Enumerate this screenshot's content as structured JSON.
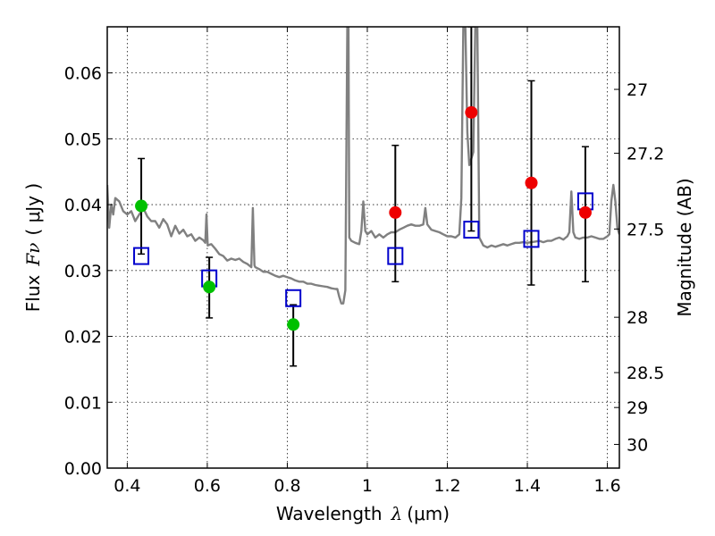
{
  "chart_data": {
    "type": "scatter",
    "xlabel": {
      "text": "Wavelength",
      "symbol": "λ",
      "unit": "(μm)"
    },
    "ylabel": {
      "text": "Flux",
      "symbol": "Fν",
      "unit": "( μJy )"
    },
    "y2label": "Magnitude (AB)",
    "xlim": [
      0.35,
      1.63
    ],
    "ylim": [
      0.0,
      0.067
    ],
    "x_ticks": [
      0.4,
      0.6,
      0.8,
      1.0,
      1.2,
      1.4,
      1.6
    ],
    "x_tick_labels": [
      "0.4",
      "0.6",
      "0.8",
      "1",
      "1.2",
      "1.4",
      "1.6"
    ],
    "y_ticks": [
      0.0,
      0.01,
      0.02,
      0.03,
      0.04,
      0.05,
      0.06
    ],
    "y_tick_labels": [
      "0.00",
      "0.01",
      "0.02",
      "0.03",
      "0.04",
      "0.05",
      "0.06"
    ],
    "y2_ticks": [
      {
        "label": "27",
        "flux": 0.0575
      },
      {
        "label": "27.2",
        "flux": 0.0478
      },
      {
        "label": "27.5",
        "flux": 0.0363
      },
      {
        "label": "28",
        "flux": 0.0229
      },
      {
        "label": "28.5",
        "flux": 0.0145
      },
      {
        "label": "29",
        "flux": 0.0092
      },
      {
        "label": "30",
        "flux": 0.0036
      }
    ],
    "grid": true,
    "colors": {
      "model": "#808080",
      "green": "#00c000",
      "red": "#ee0000",
      "box": "#0000cc",
      "errorbar": "#000000"
    },
    "series": [
      {
        "kind": "line",
        "points": [
          [
            0.35,
            0.043
          ],
          [
            0.355,
            0.0365
          ],
          [
            0.36,
            0.04
          ],
          [
            0.365,
            0.0385
          ],
          [
            0.37,
            0.041
          ],
          [
            0.38,
            0.0405
          ],
          [
            0.39,
            0.039
          ],
          [
            0.4,
            0.0385
          ],
          [
            0.41,
            0.039
          ],
          [
            0.42,
            0.0375
          ],
          [
            0.43,
            0.0385
          ],
          [
            0.44,
            0.0395
          ],
          [
            0.45,
            0.0382
          ],
          [
            0.46,
            0.0375
          ],
          [
            0.47,
            0.0375
          ],
          [
            0.48,
            0.0365
          ],
          [
            0.49,
            0.0378
          ],
          [
            0.5,
            0.037
          ],
          [
            0.51,
            0.0352
          ],
          [
            0.52,
            0.0368
          ],
          [
            0.53,
            0.0356
          ],
          [
            0.54,
            0.0362
          ],
          [
            0.55,
            0.0352
          ],
          [
            0.56,
            0.0355
          ],
          [
            0.57,
            0.0345
          ],
          [
            0.58,
            0.035
          ],
          [
            0.59,
            0.0346
          ],
          [
            0.595,
            0.0342
          ],
          [
            0.598,
            0.0385
          ],
          [
            0.601,
            0.0338
          ],
          [
            0.61,
            0.034
          ],
          [
            0.62,
            0.0333
          ],
          [
            0.63,
            0.0325
          ],
          [
            0.64,
            0.0322
          ],
          [
            0.65,
            0.0315
          ],
          [
            0.66,
            0.0318
          ],
          [
            0.67,
            0.0316
          ],
          [
            0.68,
            0.0318
          ],
          [
            0.69,
            0.0313
          ],
          [
            0.7,
            0.031
          ],
          [
            0.71,
            0.0305
          ],
          [
            0.714,
            0.0395
          ],
          [
            0.718,
            0.0308
          ],
          [
            0.72,
            0.0305
          ],
          [
            0.73,
            0.0302
          ],
          [
            0.74,
            0.0298
          ],
          [
            0.75,
            0.0298
          ],
          [
            0.76,
            0.0295
          ],
          [
            0.77,
            0.0292
          ],
          [
            0.78,
            0.029
          ],
          [
            0.79,
            0.0292
          ],
          [
            0.8,
            0.029
          ],
          [
            0.81,
            0.0288
          ],
          [
            0.82,
            0.0285
          ],
          [
            0.83,
            0.0283
          ],
          [
            0.84,
            0.0283
          ],
          [
            0.85,
            0.028
          ],
          [
            0.86,
            0.028
          ],
          [
            0.87,
            0.0278
          ],
          [
            0.88,
            0.0277
          ],
          [
            0.89,
            0.0276
          ],
          [
            0.9,
            0.0275
          ],
          [
            0.91,
            0.0273
          ],
          [
            0.92,
            0.0272
          ],
          [
            0.925,
            0.0272
          ],
          [
            0.93,
            0.026
          ],
          [
            0.935,
            0.025
          ],
          [
            0.94,
            0.025
          ],
          [
            0.945,
            0.027
          ],
          [
            0.95,
            0.067
          ],
          [
            0.953,
            0.067
          ],
          [
            0.955,
            0.035
          ],
          [
            0.96,
            0.0345
          ],
          [
            0.97,
            0.0342
          ],
          [
            0.98,
            0.034
          ],
          [
            0.985,
            0.036
          ],
          [
            0.99,
            0.0405
          ],
          [
            0.995,
            0.036
          ],
          [
            1.0,
            0.0355
          ],
          [
            1.01,
            0.036
          ],
          [
            1.02,
            0.035
          ],
          [
            1.03,
            0.0355
          ],
          [
            1.04,
            0.035
          ],
          [
            1.05,
            0.0355
          ],
          [
            1.06,
            0.0358
          ],
          [
            1.07,
            0.0358
          ],
          [
            1.08,
            0.0362
          ],
          [
            1.09,
            0.0365
          ],
          [
            1.1,
            0.0368
          ],
          [
            1.11,
            0.037
          ],
          [
            1.12,
            0.0368
          ],
          [
            1.13,
            0.0368
          ],
          [
            1.14,
            0.037
          ],
          [
            1.145,
            0.0395
          ],
          [
            1.15,
            0.037
          ],
          [
            1.16,
            0.0362
          ],
          [
            1.17,
            0.036
          ],
          [
            1.18,
            0.0358
          ],
          [
            1.19,
            0.0355
          ],
          [
            1.2,
            0.0352
          ],
          [
            1.21,
            0.0352
          ],
          [
            1.22,
            0.035
          ],
          [
            1.23,
            0.0355
          ],
          [
            1.235,
            0.041
          ],
          [
            1.24,
            0.067
          ],
          [
            1.245,
            0.067
          ],
          [
            1.25,
            0.051
          ],
          [
            1.255,
            0.046
          ],
          [
            1.26,
            0.047
          ],
          [
            1.265,
            0.048
          ],
          [
            1.27,
            0.067
          ],
          [
            1.275,
            0.067
          ],
          [
            1.28,
            0.035
          ],
          [
            1.29,
            0.0338
          ],
          [
            1.3,
            0.0335
          ],
          [
            1.31,
            0.0338
          ],
          [
            1.32,
            0.0336
          ],
          [
            1.33,
            0.0338
          ],
          [
            1.34,
            0.034
          ],
          [
            1.35,
            0.0338
          ],
          [
            1.36,
            0.034
          ],
          [
            1.37,
            0.0342
          ],
          [
            1.38,
            0.0342
          ],
          [
            1.39,
            0.0343
          ],
          [
            1.4,
            0.0342
          ],
          [
            1.41,
            0.0343
          ],
          [
            1.42,
            0.0344
          ],
          [
            1.43,
            0.0345
          ],
          [
            1.44,
            0.0343
          ],
          [
            1.45,
            0.0345
          ],
          [
            1.46,
            0.0345
          ],
          [
            1.47,
            0.0348
          ],
          [
            1.48,
            0.035
          ],
          [
            1.49,
            0.0347
          ],
          [
            1.5,
            0.0352
          ],
          [
            1.505,
            0.0358
          ],
          [
            1.51,
            0.042
          ],
          [
            1.515,
            0.0358
          ],
          [
            1.52,
            0.035
          ],
          [
            1.53,
            0.0348
          ],
          [
            1.54,
            0.035
          ],
          [
            1.55,
            0.035
          ],
          [
            1.56,
            0.0352
          ],
          [
            1.57,
            0.035
          ],
          [
            1.58,
            0.0348
          ],
          [
            1.59,
            0.0348
          ],
          [
            1.6,
            0.0352
          ],
          [
            1.605,
            0.0355
          ],
          [
            1.61,
            0.0405
          ],
          [
            1.615,
            0.043
          ],
          [
            1.62,
            0.0405
          ],
          [
            1.625,
            0.0365
          ],
          [
            1.63,
            0.0355
          ]
        ]
      },
      {
        "kind": "errorbar-points",
        "color": "green",
        "points": [
          {
            "x": 0.435,
            "y": 0.0398,
            "lo": 0.0325,
            "hi": 0.047
          },
          {
            "x": 0.605,
            "y": 0.0275,
            "lo": 0.0228,
            "hi": 0.032
          },
          {
            "x": 0.815,
            "y": 0.0218,
            "lo": 0.0155,
            "hi": 0.0248
          }
        ]
      },
      {
        "kind": "errorbar-points",
        "color": "red",
        "points": [
          {
            "x": 1.07,
            "y": 0.0388,
            "lo": 0.0283,
            "hi": 0.049
          },
          {
            "x": 1.26,
            "y": 0.054,
            "lo": 0.036,
            "hi": 0.067
          },
          {
            "x": 1.41,
            "y": 0.0433,
            "lo": 0.0278,
            "hi": 0.0588
          },
          {
            "x": 1.545,
            "y": 0.0388,
            "lo": 0.0283,
            "hi": 0.0488
          }
        ]
      },
      {
        "kind": "squares",
        "color": "box",
        "points": [
          {
            "x": 0.435,
            "y": 0.0322
          },
          {
            "x": 0.605,
            "y": 0.0288
          },
          {
            "x": 0.815,
            "y": 0.0258
          },
          {
            "x": 1.07,
            "y": 0.0322
          },
          {
            "x": 1.26,
            "y": 0.0362
          },
          {
            "x": 1.41,
            "y": 0.0348
          },
          {
            "x": 1.545,
            "y": 0.0405
          }
        ]
      }
    ]
  }
}
